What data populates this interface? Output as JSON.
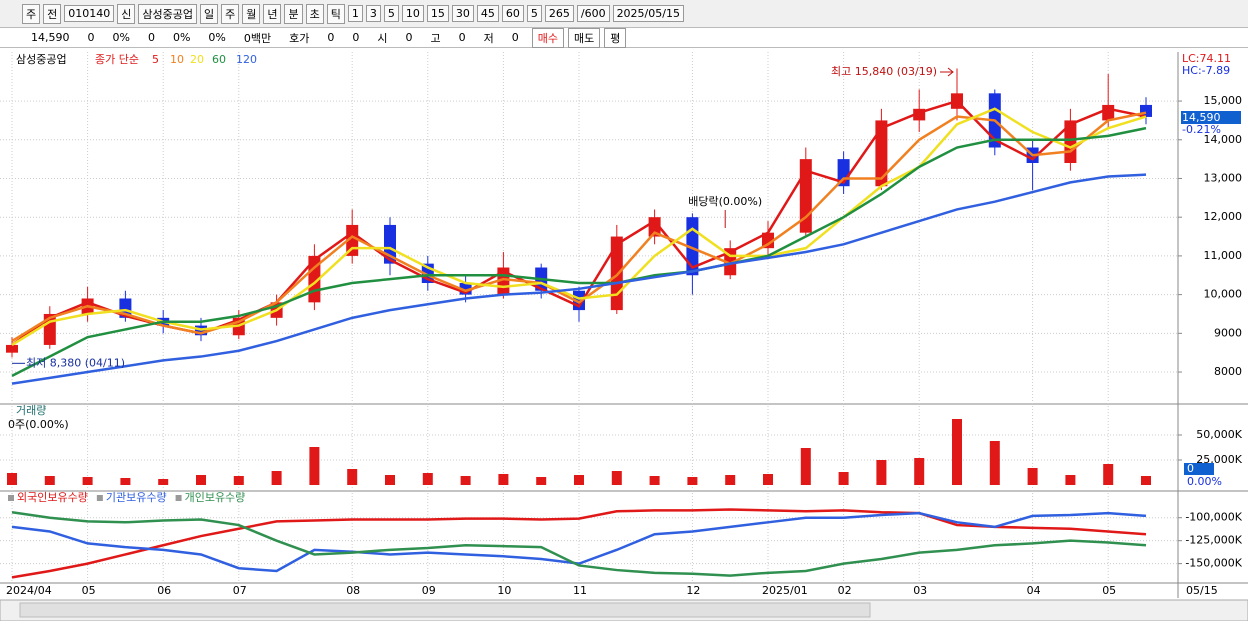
{
  "toolbar": [
    "주",
    "전",
    "010140",
    "신",
    "삼성중공업",
    "일",
    "주",
    "월",
    "년",
    "분",
    "초",
    "틱",
    "1",
    "3",
    "5",
    "10",
    "15",
    "30",
    "45",
    "60",
    "5",
    "265",
    "/600",
    "2025/05/15"
  ],
  "status": [
    "14,590",
    "0",
    "0%",
    "0",
    "0%",
    "0%",
    "0백만",
    "호가",
    "0",
    "0",
    "시",
    "0",
    "고",
    "0",
    "저",
    "0",
    "매수",
    "매도",
    "평"
  ],
  "chart_data": [
    {
      "type": "candlestick",
      "title": "삼성중공업",
      "ma_label": "종가 단순",
      "categories": [
        "2024/04",
        null,
        "05",
        null,
        "06",
        null,
        "07",
        null,
        null,
        "08",
        null,
        "09",
        null,
        "10",
        null,
        "11",
        null,
        null,
        "12",
        null,
        "2025/01",
        null,
        "02",
        null,
        "03",
        null,
        null,
        "04",
        null,
        "05",
        null
      ],
      "open": [
        8500,
        8700,
        9500,
        9900,
        9400,
        9200,
        8950,
        9400,
        9800,
        11000,
        11800,
        10800,
        10300,
        10000,
        10700,
        10100,
        9600,
        11500,
        12000,
        10500,
        11200,
        11600,
        13500,
        12800,
        14500,
        14800,
        15200,
        13800,
        13400,
        14500,
        14900
      ],
      "high": [
        8900,
        9700,
        10200,
        10100,
        9600,
        9400,
        9600,
        10000,
        11300,
        12200,
        12000,
        11000,
        10500,
        11100,
        10800,
        10200,
        11800,
        12200,
        12100,
        11400,
        11900,
        13800,
        13700,
        14800,
        15300,
        15840,
        15300,
        14000,
        14800,
        15700,
        15100
      ],
      "low": [
        8380,
        8600,
        9300,
        9300,
        9000,
        8800,
        8850,
        9200,
        9600,
        10800,
        10500,
        10100,
        9800,
        9900,
        9900,
        9300,
        9500,
        11300,
        10000,
        10400,
        11000,
        11500,
        12600,
        12700,
        14200,
        14500,
        13600,
        12700,
        13200,
        14300,
        14400
      ],
      "close": [
        8700,
        9500,
        9900,
        9400,
        9200,
        8950,
        9400,
        9800,
        11000,
        11800,
        10800,
        10300,
        10000,
        10700,
        10100,
        9600,
        11500,
        12000,
        10500,
        11200,
        11600,
        13500,
        12800,
        14500,
        14800,
        15200,
        13800,
        13400,
        14500,
        14900,
        14590
      ],
      "up_color": "#e01818",
      "down_color": "#1830e0",
      "series": [
        {
          "name": "5",
          "color": "#e01818",
          "values": [
            8700,
            9400,
            9800,
            9450,
            9200,
            9000,
            9350,
            9800,
            10900,
            11600,
            10900,
            10400,
            10050,
            10600,
            10150,
            9700,
            11300,
            11900,
            10700,
            11100,
            11600,
            13200,
            12900,
            14300,
            14700,
            15000,
            14000,
            13500,
            14400,
            14800,
            14600
          ]
        },
        {
          "name": "10",
          "color": "#f08020",
          "values": [
            8800,
            9400,
            9700,
            9500,
            9200,
            9000,
            9300,
            9800,
            10700,
            11500,
            11000,
            10500,
            10100,
            10400,
            10300,
            9800,
            10500,
            11600,
            11200,
            10800,
            11300,
            12000,
            13000,
            13000,
            14000,
            14600,
            14500,
            13600,
            13700,
            14500,
            14700
          ]
        },
        {
          "name": "20",
          "color": "#f0e020",
          "values": [
            8700,
            9300,
            9500,
            9600,
            9300,
            9100,
            9200,
            9600,
            10300,
            11200,
            11200,
            10700,
            10300,
            10200,
            10300,
            9900,
            10000,
            11000,
            11700,
            11000,
            11000,
            11200,
            12000,
            12800,
            13300,
            14400,
            14800,
            14200,
            13800,
            14300,
            14600
          ]
        },
        {
          "name": "60",
          "color": "#209040",
          "values": [
            7900,
            8400,
            8900,
            9100,
            9300,
            9300,
            9450,
            9700,
            10100,
            10300,
            10400,
            10500,
            10500,
            10500,
            10400,
            10300,
            10300,
            10500,
            10600,
            10800,
            11000,
            11500,
            12000,
            12600,
            13300,
            13800,
            14000,
            14000,
            14000,
            14100,
            14300
          ]
        },
        {
          "name": "120",
          "color": "#3060e0",
          "values": [
            7700,
            7850,
            8000,
            8150,
            8300,
            8400,
            8550,
            8800,
            9100,
            9400,
            9600,
            9750,
            9900,
            10000,
            10050,
            10150,
            10300,
            10450,
            10600,
            10800,
            10950,
            11100,
            11300,
            11600,
            11900,
            12200,
            12400,
            12650,
            12900,
            13050,
            13100
          ]
        }
      ],
      "ylim": [
        7200,
        16190
      ],
      "yticks": [
        8000,
        9000,
        {
          "value": 10000,
          "label": "10,000"
        },
        {
          "value": 11000,
          "label": "11,000"
        },
        {
          "value": 12000,
          "label": "12,000"
        },
        {
          "value": 13000,
          "label": "13,000"
        },
        {
          "value": 14000,
          "label": "14,000"
        },
        {
          "value": 15000,
          "label": "15,000"
        }
      ],
      "grid": true,
      "annotations": [
        "최고 15,840 (03/19)",
        "최저 8,380 (04/11)",
        "배당락(0.00%)"
      ],
      "side_labels": [
        "LC:74.11",
        "HC:-7.89",
        "14,590",
        "-0.21%"
      ],
      "x_cursor_label": "05/15"
    },
    {
      "type": "bar",
      "title": "거래량",
      "subtitle": "0주(0.00%)",
      "color": "#e01818",
      "values": [
        12000,
        9000,
        8000,
        7000,
        6000,
        10000,
        9000,
        14000,
        38000,
        16000,
        10000,
        12000,
        9000,
        11000,
        8000,
        10000,
        14000,
        9000,
        8000,
        10000,
        11000,
        37000,
        13000,
        25000,
        27000,
        66000,
        44000,
        17000,
        10000,
        21000,
        9000
      ],
      "ylim": [
        0,
        80000
      ],
      "yticks": [
        {
          "value": 25000,
          "label": "25,000K"
        },
        {
          "value": 50000,
          "label": "50,000K"
        }
      ],
      "side_labels": [
        "0",
        "0.00%"
      ],
      "grid": true
    },
    {
      "type": "line",
      "series": [
        {
          "name": "외국인보유수량",
          "color": "#e01818",
          "values": [
            -165000,
            -158000,
            -150000,
            -140000,
            -130000,
            -120000,
            -112000,
            -104000,
            -103000,
            -102000,
            -102000,
            -102000,
            -101000,
            -101000,
            -102000,
            -101000,
            -93000,
            -92000,
            -92000,
            -91000,
            -92000,
            -93000,
            -92000,
            -94000,
            -95000,
            -108000,
            -110000,
            -111000,
            -112000,
            -115000,
            -118000
          ]
        },
        {
          "name": "기관보유수량",
          "color": "#3060e0",
          "values": [
            -110000,
            -115000,
            -128000,
            -132000,
            -135000,
            -140000,
            -155000,
            -158000,
            -135000,
            -137000,
            -140000,
            -138000,
            -140000,
            -142000,
            -145000,
            -150000,
            -135000,
            -118000,
            -115000,
            -110000,
            -105000,
            -100000,
            -100000,
            -97000,
            -95000,
            -105000,
            -110000,
            -98000,
            -97000,
            -95000,
            -98000
          ]
        },
        {
          "name": "개인보유수량",
          "color": "#309050",
          "values": [
            -94000,
            -100000,
            -104000,
            -105000,
            -103000,
            -102000,
            -108000,
            -125000,
            -140000,
            -138000,
            -135000,
            -133000,
            -130000,
            -131000,
            -132000,
            -152000,
            -157000,
            -160000,
            -161000,
            -163000,
            -160000,
            -158000,
            -150000,
            -145000,
            -138000,
            -135000,
            -130000,
            -128000,
            -125000,
            -127000,
            -130000
          ]
        }
      ],
      "ylim": [
        -170000,
        -72000
      ],
      "yticks": [
        {
          "value": -100000,
          "label": "-100,000K"
        },
        {
          "value": -125000,
          "label": "-125,000K"
        },
        {
          "value": -150000,
          "label": "-150,000K"
        }
      ],
      "grid": true
    }
  ]
}
